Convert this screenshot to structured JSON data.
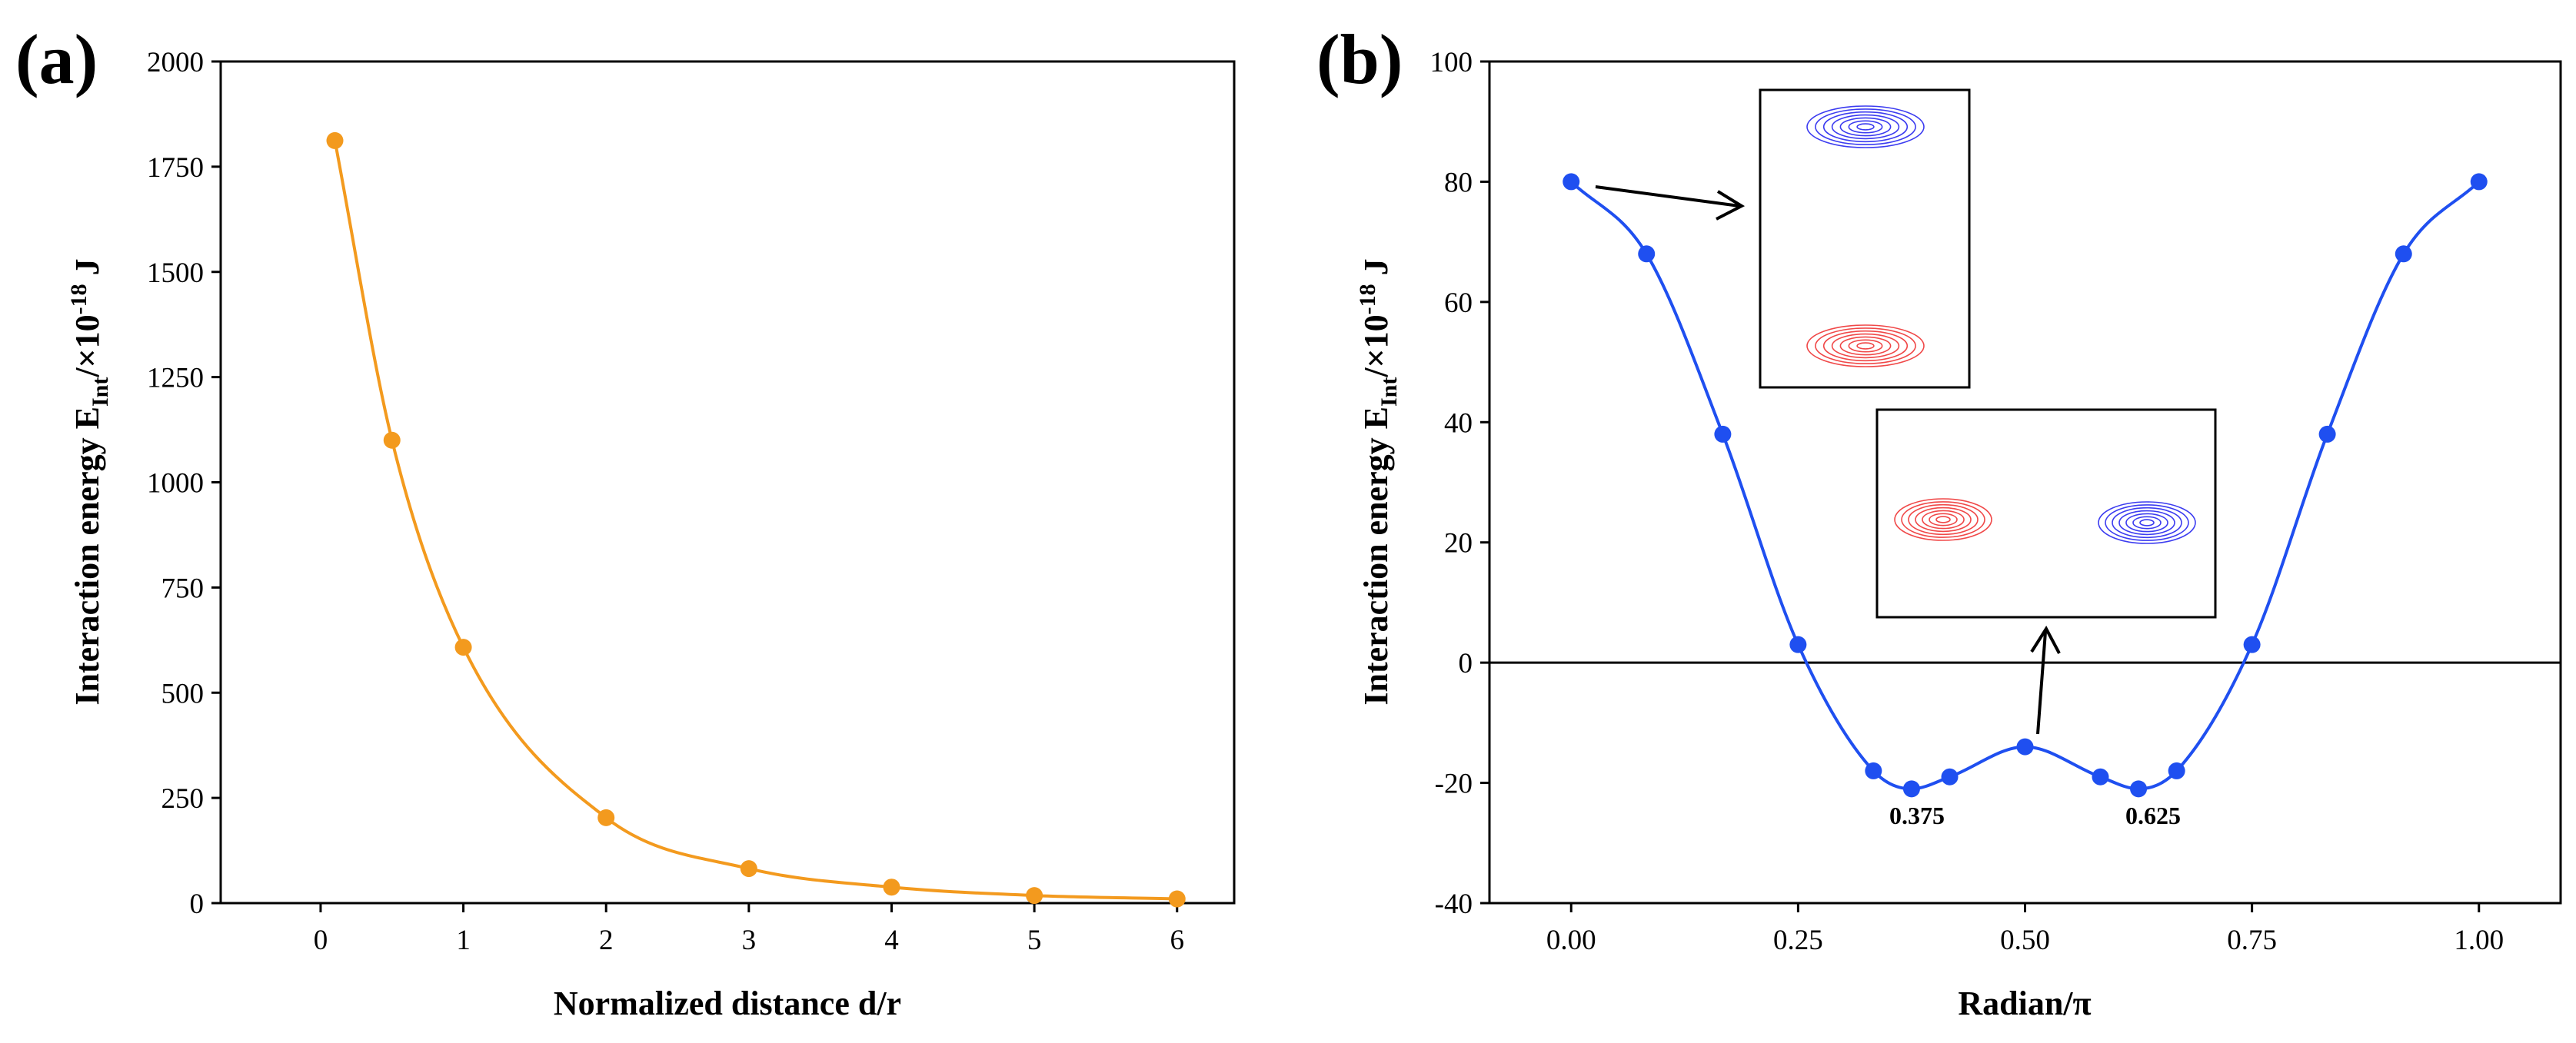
{
  "chart_data": [
    {
      "panel": "(a)",
      "type": "scatter",
      "x": [
        0.1,
        0.5,
        1,
        2,
        3,
        4,
        5,
        6
      ],
      "y": [
        1812,
        1100,
        608,
        203,
        82,
        38,
        18,
        10
      ],
      "color": "#f39a1e",
      "xlabel": "Normalized distance d/r",
      "ylabel": {
        "main": "Interaction energy E",
        "sub": "Int",
        "mid": "/×10",
        "sup": "-18",
        "end": " J"
      },
      "xlim": [
        -0.7,
        6.4
      ],
      "ylim": [
        0,
        2000
      ],
      "xticks": [
        0,
        1,
        2,
        3,
        4,
        5,
        6
      ],
      "yticks": [
        0,
        250,
        500,
        750,
        1000,
        1250,
        1500,
        1750,
        2000
      ]
    },
    {
      "panel": "(b)",
      "type": "line",
      "x": [
        0,
        0.083,
        0.167,
        0.25,
        0.333,
        0.375,
        0.417,
        0.5,
        0.583,
        0.625,
        0.667,
        0.75,
        0.833,
        0.917,
        1.0
      ],
      "y": [
        80,
        68,
        38,
        3,
        -18,
        -21,
        -19,
        -14,
        -19,
        -21,
        -18,
        3,
        38,
        68,
        80
      ],
      "color": "#1f4ff0",
      "xlabel": "Radian/π",
      "ylabel": {
        "main": "Interaction energy E",
        "sub": "Int",
        "mid": "/×10",
        "sup": "-18",
        "end": " J"
      },
      "xlim": [
        -0.09,
        1.09
      ],
      "ylim": [
        -40,
        100
      ],
      "xticks": [
        "0.00",
        "0.25",
        "0.50",
        "0.75",
        "1.00"
      ],
      "yticks": [
        -40,
        -20,
        0,
        20,
        40,
        60,
        80,
        100
      ],
      "annotations": [
        "0.375",
        "0.625"
      ],
      "inset_colors": {
        "blue": "#3c3cf0",
        "red": "#f04848"
      }
    }
  ]
}
